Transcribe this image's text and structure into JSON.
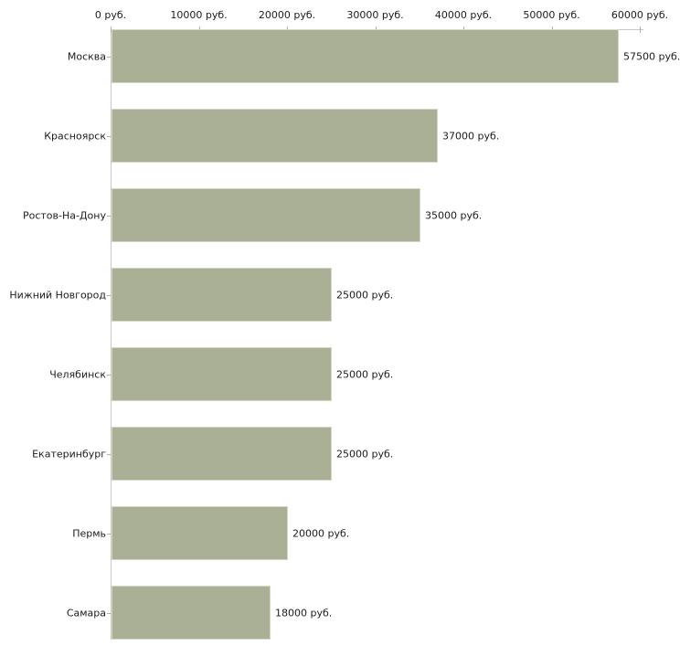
{
  "chart_data": {
    "type": "bar",
    "orientation": "horizontal",
    "title": "",
    "categories": [
      "Москва",
      "Красноярск",
      "Ростов-На-Дону",
      "Нижний Новгород",
      "Челябинск",
      "Екатеринбург",
      "Пермь",
      "Самара"
    ],
    "values": [
      57500,
      37000,
      35000,
      25000,
      25000,
      25000,
      20000,
      18000
    ],
    "value_labels": [
      "57500 руб.",
      "37000 руб.",
      "35000 руб.",
      "25000 руб.",
      "25000 руб.",
      "25000 руб.",
      "20000 руб.",
      "18000 руб."
    ],
    "x_axis": {
      "position": "top",
      "min": 0,
      "max": 60000,
      "tick_interval": 10000,
      "tick_labels": [
        "0 руб.",
        "10000 руб.",
        "20000 руб.",
        "30000 руб.",
        "40000 руб.",
        "50000 руб.",
        "60000 руб."
      ]
    },
    "y_axis_label": "",
    "x_axis_label": "",
    "legend": "none",
    "grid": false,
    "colors": {
      "bar_fill": "#aab095",
      "bar_border": "#d4d8c3",
      "axis_line": "#c6c6c6",
      "tick_mark": "#b5b28a",
      "text": "#1c1c1c",
      "background": "#ffffff"
    }
  }
}
